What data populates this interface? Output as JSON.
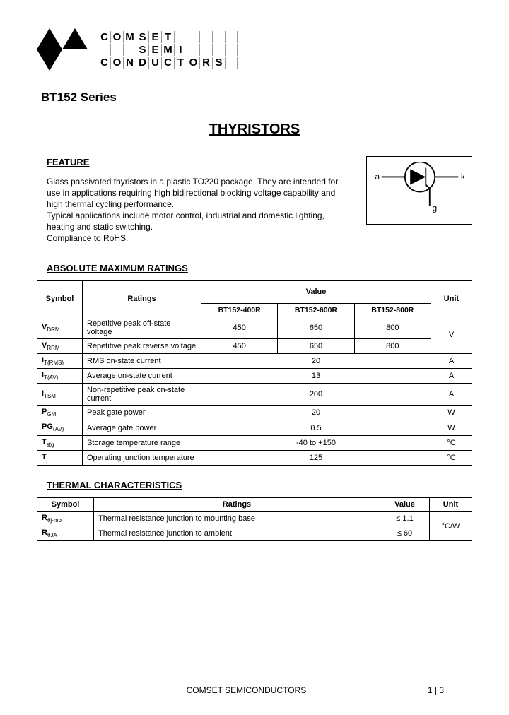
{
  "logo": {
    "line1": [
      "C",
      "O",
      "M",
      "S",
      "E",
      "T",
      " ",
      " ",
      " ",
      " ",
      " "
    ],
    "line2": [
      " ",
      " ",
      " ",
      "S",
      "E",
      "M",
      "I",
      " ",
      " ",
      " ",
      " "
    ],
    "line3": [
      "C",
      "O",
      "N",
      "D",
      "U",
      "C",
      "T",
      "O",
      "R",
      "S",
      " "
    ]
  },
  "series": "BT152 Series",
  "title": "THYRISTORS",
  "feature": {
    "heading": "FEATURE",
    "paragraph1": "Glass passivated thyristors in a plastic TO220 package. They are intended for use in applications requiring high bidirectional blocking voltage capability and high thermal cycling performance.",
    "paragraph2": "Typical applications include motor control, industrial and domestic lighting, heating and static switching.",
    "paragraph3": "Compliance to RoHS."
  },
  "symbol_labels": {
    "a": "a",
    "k": "k",
    "g": "g"
  },
  "amr": {
    "heading": "ABSOLUTE MAXIMUM RATINGS",
    "col_symbol": "Symbol",
    "col_ratings": "Ratings",
    "col_value": "Value",
    "col_unit": "Unit",
    "subcols": [
      "BT152-400R",
      "BT152-600R",
      "BT152-800R"
    ],
    "rows": [
      {
        "sym": "V",
        "sub": "DRM",
        "rating": "Repetitive peak off-state voltage",
        "v": [
          "450",
          "650",
          "800"
        ],
        "unit": "V",
        "unit_rowspan": 2
      },
      {
        "sym": "V",
        "sub": "RRM",
        "rating": "Repetitive peak reverse voltage",
        "v": [
          "450",
          "650",
          "800"
        ]
      },
      {
        "sym": "I",
        "sub": "T(RMS)",
        "rating": "RMS on-state current",
        "v": "20",
        "unit": "A"
      },
      {
        "sym": "I",
        "sub": "T(AV)",
        "rating": "Average on-state current",
        "v": "13",
        "unit": "A"
      },
      {
        "sym": "I",
        "sub": "TSM",
        "rating": "Non-repetitive peak on-state current",
        "v": "200",
        "unit": "A"
      },
      {
        "sym": "P",
        "sub": "GM",
        "rating": "Peak gate power",
        "v": "20",
        "unit": "W"
      },
      {
        "sym": "PG",
        "sub": "(AV)",
        "rating": "Average gate power",
        "v": "0.5",
        "unit": "W"
      },
      {
        "sym": "T",
        "sub": "stg",
        "rating": "Storage temperature range",
        "v": "-40 to +150",
        "unit": "°C"
      },
      {
        "sym": "T",
        "sub": "j",
        "rating": "Operating junction temperature",
        "v": "125",
        "unit": "°C"
      }
    ]
  },
  "therm": {
    "heading": "THERMAL CHARACTERISTICS",
    "col_symbol": "Symbol",
    "col_ratings": "Ratings",
    "col_value": "Value",
    "col_unit": "Unit",
    "rows": [
      {
        "sym": "R",
        "sub": "θj-mb",
        "rating": "Thermal resistance junction to mounting base",
        "value": "≤ 1.1",
        "unit": "°C/W",
        "unit_rowspan": 2
      },
      {
        "sym": "R",
        "sub": "θJA",
        "rating": "Thermal resistance junction to ambient",
        "value": "≤ 60"
      }
    ]
  },
  "footer": {
    "company": "COMSET SEMICONDUCTORS",
    "page": "1 | 3"
  }
}
